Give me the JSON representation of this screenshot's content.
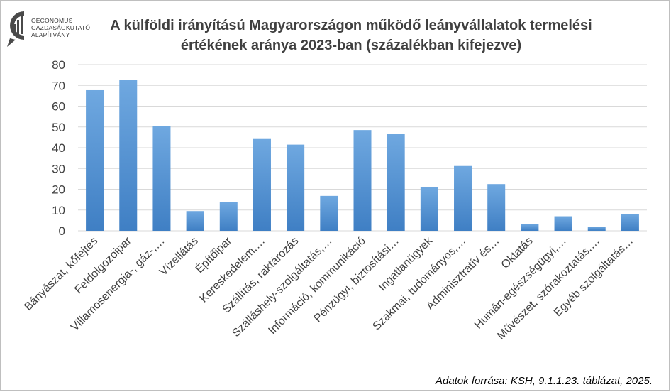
{
  "logo": {
    "lines": [
      "OECONOMUS",
      "GAZDASÁGKUTATÓ",
      "ALAPÍTVÁNY"
    ]
  },
  "title": {
    "line1": "A külföldi irányítású Magyarországon működő leányvállalatok termelési",
    "line2": "értékének aránya 2023-ban (százalékban kifejezve)"
  },
  "source": "Adatok forrása: KSH, 9.1.1.23. táblázat, 2025.",
  "colors": {
    "bar_top": "#6fa8e0",
    "bar_bottom": "#3f7fc4",
    "grid": "#d9d9d9",
    "axis_text": "#404040"
  },
  "chart_data": {
    "type": "bar",
    "categories": [
      "Bányászat, kőfejtés",
      "Feldolgozóipar",
      "Villamosenergia-, gáz-,…",
      "Vízellátás",
      "Építőipar",
      "Kereskedelem,…",
      "Szállítás, raktározás",
      "Szálláshely-szolgáltatás,…",
      "Információ, kommunikáció",
      "Pénzügyi, biztosítási…",
      "Ingatlanügyek",
      "Szakmai, tudományos,…",
      "Adminisztratív és…",
      "Oktatás",
      "Humán-egészségügyi,…",
      "Művészet, szórakoztatás,…",
      "Egyéb szolgáltatás…"
    ],
    "values": [
      67.7,
      72.5,
      50.5,
      9.5,
      13.7,
      44.2,
      41.5,
      16.8,
      48.5,
      46.8,
      21.2,
      31.2,
      22.5,
      3.3,
      7.0,
      2.0,
      8.2
    ],
    "title": "A külföldi irányítású Magyarországon működő leányvállalatok termelési értékének aránya 2023-ban (százalékban kifejezve)",
    "xlabel": "",
    "ylabel": "",
    "ylim": [
      0,
      80
    ],
    "yticks": [
      "0",
      "10",
      "20",
      "30",
      "40",
      "50",
      "60",
      "70",
      "80"
    ],
    "grid": true,
    "legend": "none"
  }
}
